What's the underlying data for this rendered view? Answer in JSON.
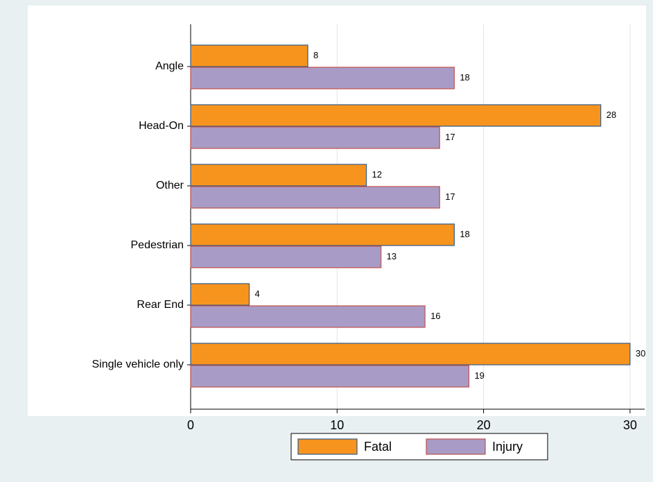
{
  "chart_data": {
    "type": "barh",
    "categories": [
      "Angle",
      "Head-On",
      "Other",
      "Pedestrian",
      "Rear End",
      "Single vehicle only"
    ],
    "series": [
      {
        "name": "Fatal",
        "color": "#f7941d",
        "edge": "#2f5b8c",
        "values": [
          8,
          28,
          12,
          18,
          4,
          30
        ]
      },
      {
        "name": "Injury",
        "color": "#a89cc6",
        "edge": "#c0504d",
        "values": [
          18,
          17,
          17,
          13,
          16,
          19
        ]
      }
    ],
    "xlim": [
      0,
      31
    ],
    "xticks": [
      0,
      10,
      20,
      30
    ],
    "grid": true,
    "legend": "bottom"
  }
}
